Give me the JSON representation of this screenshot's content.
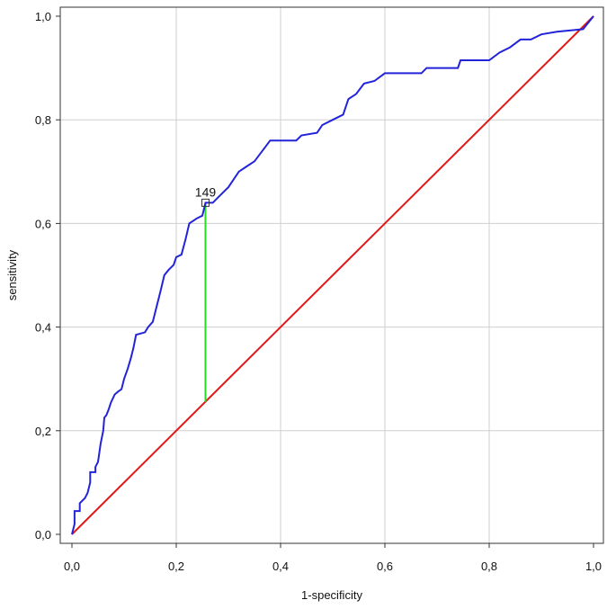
{
  "chart_data": {
    "type": "line",
    "title": "",
    "xlabel": "1-specificity",
    "ylabel": "sensitivity",
    "xlim": [
      0,
      1
    ],
    "ylim": [
      0,
      1
    ],
    "grid": true,
    "x_ticks": [
      "0,0",
      "0,2",
      "0,4",
      "0,6",
      "0,8",
      "1,0"
    ],
    "y_ticks": [
      "0,0",
      "0,2",
      "0,4",
      "0,6",
      "0,8",
      "1,0"
    ],
    "colors": {
      "roc": "#2323d9",
      "reference": "#e01a1a",
      "youden": "#22dd22",
      "grid": "#cfcfcf",
      "frame": "#333333"
    },
    "series": [
      {
        "role": "roc-curve",
        "points": [
          [
            0.0,
            0.0
          ],
          [
            0.005,
            0.02
          ],
          [
            0.005,
            0.045
          ],
          [
            0.015,
            0.045
          ],
          [
            0.015,
            0.06
          ],
          [
            0.025,
            0.07
          ],
          [
            0.03,
            0.08
          ],
          [
            0.035,
            0.1
          ],
          [
            0.035,
            0.12
          ],
          [
            0.045,
            0.12
          ],
          [
            0.045,
            0.13
          ],
          [
            0.05,
            0.14
          ],
          [
            0.055,
            0.175
          ],
          [
            0.06,
            0.2
          ],
          [
            0.062,
            0.225
          ],
          [
            0.066,
            0.23
          ],
          [
            0.07,
            0.24
          ],
          [
            0.075,
            0.255
          ],
          [
            0.082,
            0.27
          ],
          [
            0.088,
            0.275
          ],
          [
            0.095,
            0.28
          ],
          [
            0.1,
            0.3
          ],
          [
            0.107,
            0.32
          ],
          [
            0.113,
            0.34
          ],
          [
            0.118,
            0.36
          ],
          [
            0.123,
            0.385
          ],
          [
            0.14,
            0.39
          ],
          [
            0.146,
            0.4
          ],
          [
            0.155,
            0.41
          ],
          [
            0.16,
            0.43
          ],
          [
            0.165,
            0.45
          ],
          [
            0.17,
            0.47
          ],
          [
            0.177,
            0.5
          ],
          [
            0.185,
            0.51
          ],
          [
            0.195,
            0.52
          ],
          [
            0.2,
            0.535
          ],
          [
            0.21,
            0.54
          ],
          [
            0.218,
            0.57
          ],
          [
            0.225,
            0.6
          ],
          [
            0.24,
            0.61
          ],
          [
            0.25,
            0.615
          ],
          [
            0.256,
            0.64
          ],
          [
            0.27,
            0.64
          ],
          [
            0.28,
            0.65
          ],
          [
            0.29,
            0.66
          ],
          [
            0.3,
            0.67
          ],
          [
            0.31,
            0.685
          ],
          [
            0.32,
            0.7
          ],
          [
            0.335,
            0.71
          ],
          [
            0.35,
            0.72
          ],
          [
            0.365,
            0.74
          ],
          [
            0.38,
            0.76
          ],
          [
            0.43,
            0.76
          ],
          [
            0.44,
            0.77
          ],
          [
            0.47,
            0.775
          ],
          [
            0.48,
            0.79
          ],
          [
            0.5,
            0.8
          ],
          [
            0.52,
            0.81
          ],
          [
            0.53,
            0.84
          ],
          [
            0.545,
            0.85
          ],
          [
            0.56,
            0.87
          ],
          [
            0.58,
            0.875
          ],
          [
            0.6,
            0.89
          ],
          [
            0.67,
            0.89
          ],
          [
            0.68,
            0.9
          ],
          [
            0.74,
            0.9
          ],
          [
            0.745,
            0.915
          ],
          [
            0.8,
            0.915
          ],
          [
            0.82,
            0.93
          ],
          [
            0.84,
            0.94
          ],
          [
            0.86,
            0.955
          ],
          [
            0.88,
            0.955
          ],
          [
            0.9,
            0.965
          ],
          [
            0.93,
            0.97
          ],
          [
            0.98,
            0.975
          ],
          [
            1.0,
            1.0
          ]
        ]
      },
      {
        "role": "reference-diagonal",
        "points": [
          [
            0.0,
            0.0
          ],
          [
            1.0,
            1.0
          ]
        ]
      }
    ],
    "cutoff": {
      "label": "149",
      "x": 0.256,
      "y": 0.64,
      "reference_y": 0.256
    }
  }
}
